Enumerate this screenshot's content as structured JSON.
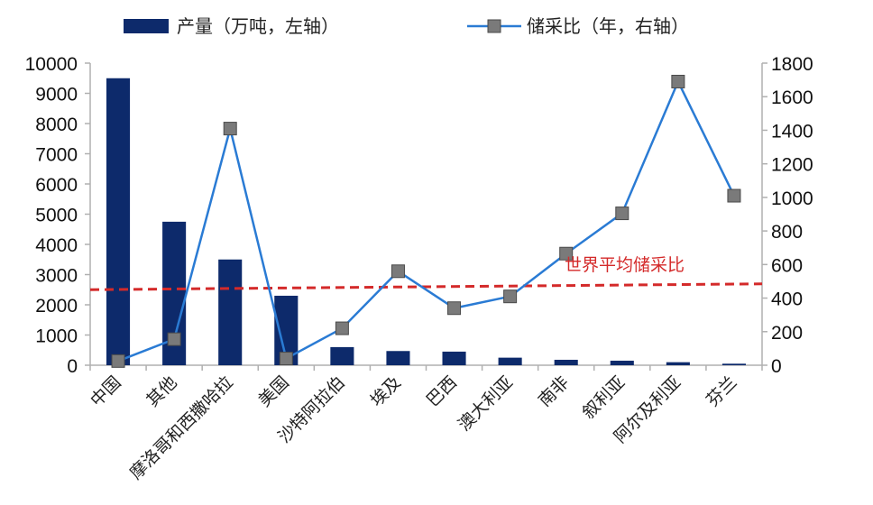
{
  "chart_data": {
    "type": "bar",
    "categories": [
      "中国",
      "其他",
      "摩洛哥和西撒哈拉",
      "美国",
      "沙特阿拉伯",
      "埃及",
      "巴西",
      "澳大利亚",
      "南非",
      "叙利亚",
      "阿尔及利亚",
      "芬兰"
    ],
    "series": [
      {
        "name": "产量（万吨，左轴）",
        "type": "bar",
        "axis": "left",
        "values": [
          9500,
          4750,
          3500,
          2300,
          600,
          470,
          450,
          250,
          180,
          150,
          100,
          50
        ]
      },
      {
        "name": "储采比（年，右轴）",
        "type": "line",
        "axis": "right",
        "values": [
          25,
          155,
          1410,
          40,
          220,
          560,
          340,
          410,
          665,
          905,
          1690,
          1010
        ]
      }
    ],
    "reference_line": {
      "label": "世界平均储采比",
      "axis": "right",
      "value_start": 450,
      "value_end": 485
    },
    "y_left": {
      "ylim": [
        0,
        10000
      ],
      "ticks": [
        0,
        1000,
        2000,
        3000,
        4000,
        5000,
        6000,
        7000,
        8000,
        9000,
        10000
      ]
    },
    "y_right": {
      "ylim": [
        0,
        1800
      ],
      "ticks": [
        0,
        200,
        400,
        600,
        800,
        1000,
        1200,
        1400,
        1600,
        1800
      ]
    },
    "legend_placement": "top",
    "colors": {
      "bar": "#0d2a6b",
      "line": "#2a7bd4",
      "marker": "#7a7a7a",
      "marker_edge": "#4a4a4a",
      "reference": "#d42a2a",
      "axis": "#b0b0b0"
    },
    "grid": false
  }
}
